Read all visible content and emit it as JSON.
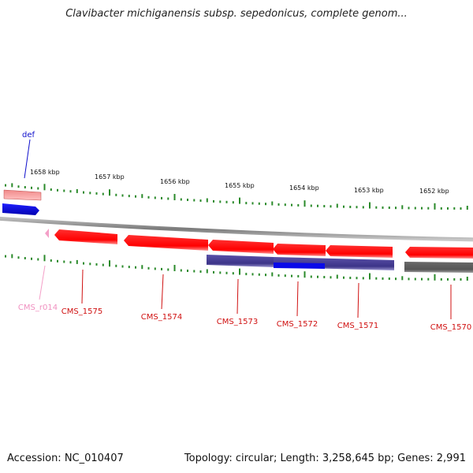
{
  "title": "Clavibacter michiganensis subsp. sepedonicus, complete genom...",
  "accession": "Accession: NC_010407",
  "summary": "Topology: circular; Length: 3,258,645 bp; Genes: 2,991",
  "scale_labels": [
    "1658 kbp",
    "1657 kbp",
    "1656 kbp",
    "1655 kbp",
    "1654 kbp",
    "1653 kbp",
    "1652 kbp"
  ],
  "features": [
    {
      "name": "def",
      "strand": "forward",
      "color": "#1010cc"
    },
    {
      "name": "CMS_r014",
      "strand": "reverse",
      "color": "#f4a0c8"
    },
    {
      "name": "CMS_1575",
      "strand": "reverse",
      "color": "#d01010"
    },
    {
      "name": "CMS_1574",
      "strand": "reverse",
      "color": "#d01010"
    },
    {
      "name": "CMS_1573",
      "strand": "reverse",
      "color": "#d01010"
    },
    {
      "name": "CMS_1572",
      "strand": "reverse",
      "color": "#d01010"
    },
    {
      "name": "CMS_1571",
      "strand": "reverse",
      "color": "#d01010"
    },
    {
      "name": "CMS_1570",
      "strand": "reverse",
      "color": "#d01010"
    }
  ],
  "colors": {
    "tick": "#2a8a2a",
    "backbone": "#8a8a8a",
    "cds_red": "#ff0000",
    "cds_forward_blue": "#1010ee",
    "feature_purple": "#4a4090",
    "feature_gray": "#707070",
    "rrna_pink": "#f4a0c8",
    "upper_pink": "#e07a7a"
  }
}
